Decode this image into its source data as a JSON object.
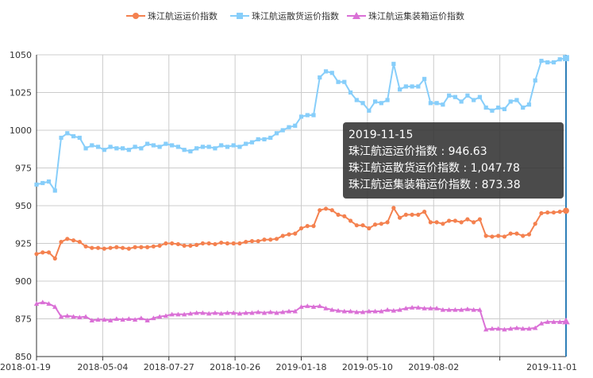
{
  "chart_data": {
    "type": "line",
    "title": "",
    "xlabel": "",
    "ylabel": "",
    "ylim": [
      850,
      1050
    ],
    "yticks": [
      850,
      875,
      900,
      925,
      950,
      975,
      1000,
      1025,
      1050
    ],
    "xticks": [
      "2018-01-19",
      "2018-05-04",
      "2018-07-27",
      "2018-10-26",
      "2019-01-18",
      "2019-05-10",
      "2019-08-02",
      "2019-11-01"
    ],
    "grid": true,
    "legend_position": "top-center",
    "series": [
      {
        "name": "珠江航运运价指数",
        "color": "#f4814f",
        "marker": "circle",
        "values": [
          918,
          919,
          919,
          915,
          926,
          928,
          927,
          926,
          923,
          922,
          922,
          921.5,
          922,
          922.5,
          922,
          921.5,
          922.5,
          922.5,
          922.5,
          923,
          923.5,
          925,
          925,
          924.5,
          923.5,
          923.5,
          924,
          925,
          925,
          924.5,
          925.5,
          925,
          925,
          925,
          926,
          926.5,
          926.5,
          927.5,
          927.5,
          928,
          930,
          931,
          931.5,
          935,
          936.5,
          936.5,
          947,
          948,
          947,
          944,
          943,
          940,
          937,
          937,
          935,
          937.5,
          938,
          939,
          948.5,
          942,
          944,
          944,
          944,
          946,
          939,
          939,
          938,
          940,
          940,
          939,
          941,
          939,
          941,
          930,
          929.5,
          930,
          929.5,
          931.5,
          931.5,
          930,
          931,
          938,
          945,
          945.5,
          945.5,
          946,
          946.63
        ]
      },
      {
        "name": "珠江航运散货运价指数",
        "color": "#87cefa",
        "marker": "square",
        "values": [
          964,
          965,
          966,
          960,
          995,
          998,
          996,
          995,
          988,
          990,
          989,
          987,
          989,
          988,
          988,
          987,
          989,
          988,
          991,
          990,
          989,
          991,
          990,
          989,
          987,
          986,
          988,
          989,
          989,
          988,
          990,
          989,
          990,
          989,
          991,
          992,
          994,
          994,
          995,
          998,
          1000,
          1002,
          1003,
          1009,
          1010,
          1010,
          1035,
          1039,
          1038,
          1032,
          1032,
          1025,
          1020,
          1018,
          1013,
          1019,
          1018,
          1020,
          1044,
          1027,
          1029,
          1029,
          1029,
          1034,
          1018,
          1018,
          1017,
          1023,
          1022,
          1019,
          1023,
          1020,
          1022,
          1015,
          1013,
          1015,
          1014,
          1019,
          1020,
          1015,
          1017,
          1033,
          1046,
          1045,
          1045,
          1047,
          1047.78
        ]
      },
      {
        "name": "珠江航运集装箱运价指数",
        "color": "#da70d6",
        "marker": "triangle",
        "values": [
          885,
          886,
          885,
          883,
          876.5,
          877,
          876.5,
          876,
          876.5,
          874,
          874.5,
          874.5,
          874,
          875,
          874.5,
          875,
          874.5,
          875.5,
          874,
          875.5,
          876.5,
          877,
          878,
          878,
          878,
          878.5,
          879,
          879,
          878.5,
          879,
          878.5,
          879,
          879,
          878.5,
          879,
          879,
          879.5,
          879,
          879.5,
          879,
          879.5,
          880,
          880,
          883,
          883.5,
          883,
          883.5,
          882,
          881,
          880.5,
          880,
          880,
          879.5,
          879.5,
          880,
          880,
          880,
          881,
          880.5,
          881,
          882,
          882.5,
          882.5,
          882,
          882,
          882,
          881,
          881,
          881,
          881,
          881.5,
          881,
          881,
          868,
          868.5,
          868.5,
          868,
          868.5,
          869,
          868.5,
          868.5,
          869,
          872,
          873,
          873,
          873,
          873.38
        ]
      }
    ]
  },
  "tooltip": {
    "date": "2019-11-15",
    "rows": [
      "珠江航运运价指数 : 946.63",
      "珠江航运散货运价指数 : 1,047.78",
      "珠江航运集装箱运价指数 : 873.38"
    ]
  }
}
